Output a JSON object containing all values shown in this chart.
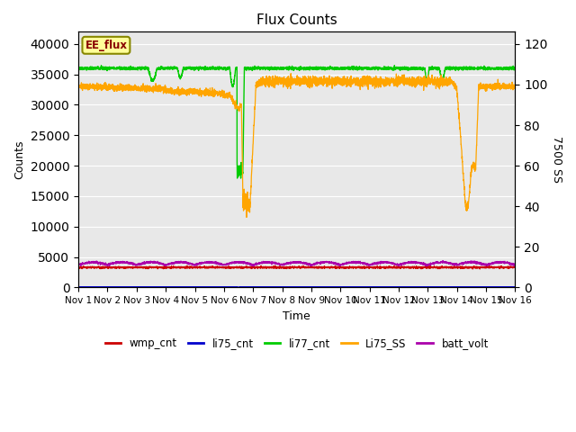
{
  "title": "Flux Counts",
  "xlabel": "Time",
  "ylabel_left": "Counts",
  "ylabel_right": "7500 SS",
  "ylim_left": [
    0,
    42000
  ],
  "ylim_right": [
    0,
    126
  ],
  "xlim": [
    0,
    15
  ],
  "x_ticks": [
    0,
    1,
    2,
    3,
    4,
    5,
    6,
    7,
    8,
    9,
    10,
    11,
    12,
    13,
    14,
    15
  ],
  "x_tick_labels": [
    "Nov 1",
    "Nov 2",
    "Nov 3",
    "Nov 4",
    "Nov 5",
    "Nov 6",
    "Nov 7",
    "Nov 8",
    "Nov 9",
    "Nov 10",
    "Nov 11",
    "Nov 12",
    "Nov 13",
    "Nov 14",
    "Nov 15",
    "Nov 16"
  ],
  "yticks_left": [
    0,
    5000,
    10000,
    15000,
    20000,
    25000,
    30000,
    35000,
    40000
  ],
  "yticks_right": [
    0,
    20,
    40,
    60,
    80,
    100,
    120
  ],
  "colors": {
    "wmp_cnt": "#cc0000",
    "li75_cnt": "#0000cc",
    "li77_cnt": "#00cc00",
    "Li75_SS": "#ffa500",
    "batt_volt": "#aa00aa"
  },
  "background_color": "#e8e8e8",
  "annotation_text": "EE_flux",
  "annotation_box_color": "#ffff99",
  "annotation_border_color": "#888800",
  "figsize": [
    6.4,
    4.8
  ],
  "dpi": 100
}
